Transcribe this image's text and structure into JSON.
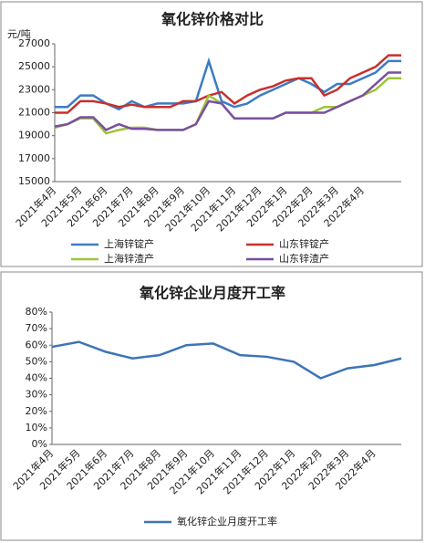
{
  "chart_data": [
    {
      "type": "line",
      "title": "氧化锌价格对比",
      "y_label": "元/吨",
      "categories": [
        "2021年4月",
        null,
        "2021年5月",
        null,
        "2021年6月",
        null,
        "2021年7月",
        null,
        "2021年8月",
        null,
        "2021年9月",
        null,
        "2021年10月",
        null,
        "2021年11月",
        null,
        "2021年12月",
        null,
        "2022年1月",
        null,
        "2022年2月",
        null,
        "2022年3月",
        null,
        "2022年4月",
        null,
        null,
        null
      ],
      "ylim": [
        15000,
        27000
      ],
      "yticks": [
        15000,
        17000,
        19000,
        21000,
        23000,
        25000,
        27000
      ],
      "series": [
        {
          "name": "上海锌锭产",
          "color": "#3b7cc4",
          "values": [
            21500,
            21500,
            22500,
            22500,
            21800,
            21300,
            22000,
            21500,
            21800,
            21800,
            21800,
            22000,
            25500,
            22000,
            21500,
            21800,
            22500,
            23000,
            23500,
            24000,
            23500,
            22800,
            23500,
            23500,
            24000,
            24500,
            25500,
            25500
          ]
        },
        {
          "name": "山东锌锭产",
          "color": "#c8302c",
          "values": [
            21000,
            21000,
            22000,
            22000,
            21800,
            21500,
            21700,
            21500,
            21500,
            21500,
            22000,
            22000,
            22500,
            22800,
            21800,
            22500,
            23000,
            23300,
            23800,
            24000,
            24000,
            22500,
            23000,
            24000,
            24500,
            25000,
            26000,
            26000
          ]
        },
        {
          "name": "上海锌渣产",
          "color": "#9cc43c",
          "values": [
            19700,
            20000,
            20500,
            20500,
            19200,
            19500,
            19700,
            19700,
            19500,
            19500,
            19500,
            20000,
            22500,
            21800,
            20500,
            20500,
            20500,
            20500,
            21000,
            21000,
            21000,
            21500,
            21500,
            22000,
            22500,
            23000,
            24000,
            24000
          ]
        },
        {
          "name": "山东锌渣产",
          "color": "#7a4fa0",
          "values": [
            19800,
            20000,
            20600,
            20600,
            19500,
            20000,
            19600,
            19600,
            19500,
            19500,
            19500,
            20000,
            22000,
            21800,
            20500,
            20500,
            20500,
            20500,
            21000,
            21000,
            21000,
            21000,
            21500,
            22000,
            22500,
            23500,
            24500,
            24500
          ]
        }
      ]
    },
    {
      "type": "line",
      "title": "氧化锌企业月度开工率",
      "categories": [
        "2021年4月",
        "2021年5月",
        "2021年6月",
        "2021年7月",
        "2021年8月",
        "2021年9月",
        "2021年10月",
        "2021年11月",
        "2021年12月",
        "2022年1月",
        "2022年2月",
        "2022年3月",
        "2022年4月",
        null
      ],
      "ylim": [
        0,
        80
      ],
      "yticks": [
        {
          "value": 0,
          "label": "0%"
        },
        {
          "value": 10,
          "label": "10%"
        },
        {
          "value": 20,
          "label": "20%"
        },
        {
          "value": 30,
          "label": "30%"
        },
        {
          "value": 40,
          "label": "40%"
        },
        {
          "value": 50,
          "label": "50%"
        },
        {
          "value": 60,
          "label": "60%"
        },
        {
          "value": 70,
          "label": "70%"
        },
        {
          "value": 80,
          "label": "80%"
        }
      ],
      "series": [
        {
          "name": "氧化锌企业月度开工率",
          "color": "#3d74b8",
          "values": [
            59,
            62,
            56,
            52,
            54,
            60,
            61,
            54,
            53,
            50,
            40,
            46,
            48,
            52
          ]
        }
      ]
    }
  ]
}
